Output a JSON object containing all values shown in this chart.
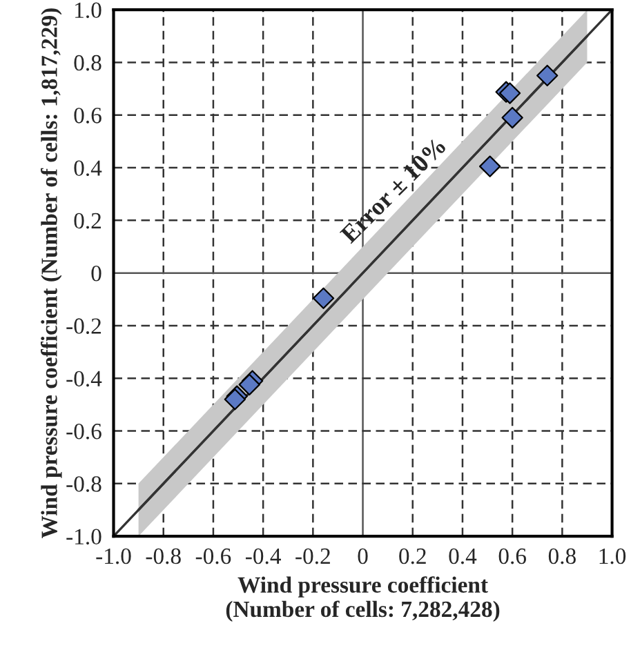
{
  "chart_data": {
    "type": "scatter",
    "xlabel": "Wind pressure coefficient\n(Number of cells: 7,282,428)",
    "ylabel": "Wind pressure coefficient (Number of cells: 1,817,229)",
    "series": [
      {
        "type": "line",
        "color": "#333333",
        "marker": "none",
        "x": [
          -1.0,
          1.0
        ],
        "values": [
          -1.0,
          1.0
        ]
      },
      {
        "type": "line",
        "color": "#333333",
        "marker": "none",
        "x": [
          -0.9,
          0.9
        ],
        "values": [
          -0.9,
          0.9
        ],
        "lower": [
          -1.0,
          0.8
        ],
        "upper": [
          -0.8,
          1.0
        ]
      },
      {
        "color": "#5b79c4",
        "marker": "diamond",
        "x": [
          0.74,
          0.575,
          0.59,
          0.6,
          0.51,
          -0.158,
          -0.443,
          -0.455,
          -0.505,
          -0.513
        ],
        "values": [
          0.75,
          0.688,
          0.683,
          0.59,
          0.405,
          -0.096,
          -0.41,
          -0.424,
          -0.468,
          -0.48
        ]
      }
    ],
    "xlim": [
      -1.0,
      1.0
    ],
    "ylim": [
      -1.0,
      1.0
    ],
    "xticks": [
      {
        "value": -1.0,
        "label": "-1.0"
      },
      {
        "value": -0.8,
        "label": "-0.8"
      },
      {
        "value": -0.6,
        "label": "-0.6"
      },
      {
        "value": -0.4,
        "label": "-0.4"
      },
      {
        "value": -0.2,
        "label": "-0.2"
      },
      0,
      0.2,
      0.4,
      0.6,
      0.8,
      {
        "value": 1.0,
        "label": "1.0"
      }
    ],
    "yticks": [
      {
        "value": -1.0,
        "label": "-1.0"
      },
      {
        "value": -0.8,
        "label": "-0.8"
      },
      {
        "value": -0.6,
        "label": "-0.6"
      },
      {
        "value": -0.4,
        "label": "-0.4"
      },
      {
        "value": -0.2,
        "label": "-0.2"
      },
      0,
      0.2,
      0.4,
      0.6,
      0.8,
      {
        "value": 1.0,
        "label": "1.0"
      }
    ],
    "grid": true,
    "annotations": [
      "Error ± 10%"
    ]
  }
}
